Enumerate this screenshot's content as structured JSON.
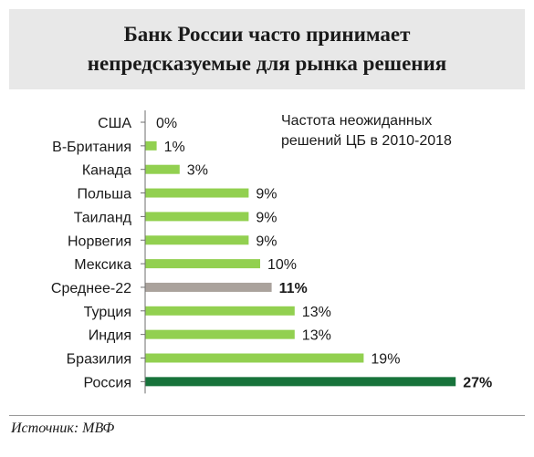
{
  "title": {
    "line1": "Банк России часто принимает",
    "line2": "непредсказуемые для рынка решения"
  },
  "source": "Источник: МВФ",
  "chart_data": {
    "type": "bar",
    "orientation": "horizontal",
    "annotation": [
      "Частота неожиданных",
      "решений ЦБ в 2010-2018"
    ],
    "categories": [
      "США",
      "В-Британия",
      "Канада",
      "Польша",
      "Таиланд",
      "Норвегия",
      "Мексика",
      "Среднее-22",
      "Турция",
      "Индия",
      "Бразилия",
      "Россия"
    ],
    "values": [
      0,
      1,
      3,
      9,
      9,
      9,
      10,
      11,
      13,
      13,
      19,
      27
    ],
    "value_labels": [
      "0%",
      "1%",
      "3%",
      "9%",
      "9%",
      "9%",
      "10%",
      "11%",
      "13%",
      "13%",
      "19%",
      "27%"
    ],
    "bold_labels": [
      false,
      false,
      false,
      false,
      false,
      false,
      false,
      true,
      false,
      false,
      false,
      true
    ],
    "bar_colors": [
      "#92d050",
      "#92d050",
      "#92d050",
      "#92d050",
      "#92d050",
      "#92d050",
      "#92d050",
      "#aaa29c",
      "#92d050",
      "#92d050",
      "#92d050",
      "#17733b"
    ],
    "xlim": [
      0,
      27
    ],
    "grid": false,
    "legend": "none"
  }
}
